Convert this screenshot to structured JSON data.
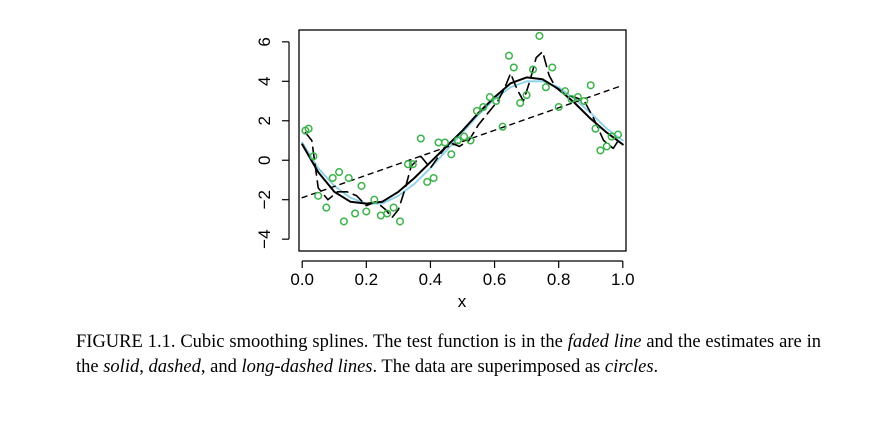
{
  "chart_data": {
    "type": "scatter",
    "xlabel": "x",
    "ylabel": "",
    "xlim": [
      -0.01,
      1.01
    ],
    "ylim": [
      -4.6,
      6.6
    ],
    "x_ticks": [
      0.0,
      0.2,
      0.4,
      0.6,
      0.8,
      1.0
    ],
    "x_tick_labels": [
      "0.0",
      "0.2",
      "0.4",
      "0.6",
      "0.8",
      "1.0"
    ],
    "y_ticks": [
      -4,
      -2,
      0,
      2,
      4,
      6
    ],
    "y_tick_labels": [
      "−4",
      "−2",
      "0",
      "2",
      "4",
      "6"
    ],
    "grid": false,
    "points": {
      "color": "#3cb34a",
      "x": [
        0.01,
        0.02,
        0.035,
        0.05,
        0.075,
        0.095,
        0.115,
        0.13,
        0.145,
        0.165,
        0.185,
        0.2,
        0.225,
        0.245,
        0.265,
        0.285,
        0.305,
        0.33,
        0.345,
        0.37,
        0.39,
        0.41,
        0.425,
        0.445,
        0.465,
        0.485,
        0.505,
        0.525,
        0.545,
        0.565,
        0.585,
        0.605,
        0.625,
        0.645,
        0.66,
        0.68,
        0.7,
        0.72,
        0.74,
        0.76,
        0.78,
        0.8,
        0.82,
        0.84,
        0.86,
        0.88,
        0.9,
        0.915,
        0.93,
        0.95,
        0.965,
        0.985
      ],
      "y": [
        1.5,
        1.6,
        0.2,
        -1.8,
        -2.4,
        -0.9,
        -0.6,
        -3.1,
        -0.9,
        -2.7,
        -1.3,
        -2.6,
        -2.0,
        -2.8,
        -2.7,
        -2.4,
        -3.1,
        -0.2,
        -0.2,
        1.1,
        -1.1,
        -0.9,
        0.9,
        0.9,
        0.3,
        1.0,
        1.2,
        1.0,
        2.5,
        2.7,
        3.2,
        3.0,
        1.7,
        5.3,
        4.7,
        2.9,
        3.3,
        4.6,
        6.3,
        3.7,
        4.7,
        2.7,
        3.5,
        3.1,
        3.2,
        3.0,
        3.8,
        1.6,
        0.5,
        0.7,
        1.2,
        1.3
      ]
    },
    "series": [
      {
        "style": "faded",
        "color": "#8ad0e8",
        "x": [
          0.0,
          0.05,
          0.1,
          0.15,
          0.2,
          0.25,
          0.3,
          0.35,
          0.4,
          0.45,
          0.5,
          0.55,
          0.6,
          0.65,
          0.7,
          0.75,
          0.8,
          0.85,
          0.9,
          0.95,
          1.0
        ],
        "y": [
          0.9,
          -0.4,
          -1.3,
          -1.9,
          -2.2,
          -2.2,
          -1.8,
          -1.2,
          -0.4,
          0.5,
          1.4,
          2.3,
          3.1,
          3.7,
          4.0,
          4.0,
          3.7,
          3.1,
          2.4,
          1.6,
          1.0
        ]
      },
      {
        "style": "solid",
        "color": "#000000",
        "x": [
          0.0,
          0.05,
          0.1,
          0.15,
          0.2,
          0.25,
          0.3,
          0.35,
          0.4,
          0.45,
          0.5,
          0.55,
          0.6,
          0.65,
          0.7,
          0.75,
          0.8,
          0.85,
          0.9,
          0.95,
          1.0
        ],
        "y": [
          0.8,
          -0.6,
          -1.6,
          -2.1,
          -2.2,
          -2.1,
          -1.6,
          -0.9,
          -0.1,
          0.7,
          1.5,
          2.4,
          3.2,
          3.9,
          4.2,
          4.1,
          3.6,
          2.9,
          2.1,
          1.4,
          0.8
        ]
      },
      {
        "style": "dashed",
        "color": "#000000",
        "x": [
          0.0,
          1.0
        ],
        "y": [
          -1.9,
          3.8
        ]
      },
      {
        "style": "long-dashed",
        "color": "#000000",
        "x": [
          0.01,
          0.03,
          0.05,
          0.08,
          0.11,
          0.14,
          0.17,
          0.2,
          0.23,
          0.26,
          0.28,
          0.3,
          0.32,
          0.34,
          0.37,
          0.4,
          0.43,
          0.46,
          0.49,
          0.52,
          0.55,
          0.58,
          0.61,
          0.63,
          0.65,
          0.67,
          0.69,
          0.71,
          0.73,
          0.75,
          0.77,
          0.79,
          0.82,
          0.85,
          0.88,
          0.91,
          0.94,
          0.97,
          0.99
        ],
        "y": [
          1.4,
          1.0,
          -1.4,
          -2.0,
          -1.6,
          -1.6,
          -1.8,
          -2.3,
          -2.1,
          -2.5,
          -2.9,
          -2.5,
          -1.5,
          -0.3,
          0.2,
          -0.4,
          0.3,
          0.9,
          0.7,
          1.0,
          1.8,
          2.4,
          3.0,
          3.6,
          4.4,
          3.6,
          3.0,
          4.0,
          5.2,
          5.5,
          4.3,
          3.7,
          3.3,
          3.2,
          3.0,
          2.1,
          1.0,
          0.6,
          1.1
        ]
      }
    ]
  },
  "caption": {
    "prefix": "FIGURE 1.1. Cubic smoothing splines. The test function is in the ",
    "faded": "faded line",
    "mid1": " and the estimates are in the ",
    "solid": "solid",
    "sep1": ", ",
    "dashed": "dashed",
    "sep2": ", and ",
    "longdashed": "long-dashed lines",
    "mid2": ". The data are superimposed as ",
    "circles": "circles",
    "end": "."
  }
}
